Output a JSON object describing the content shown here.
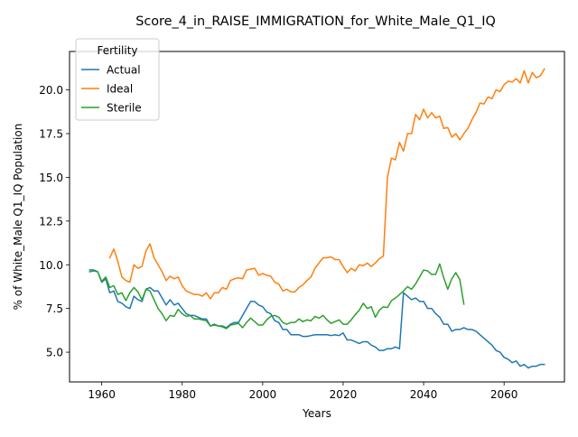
{
  "chart_data": {
    "type": "line",
    "title": "Score_4_in_RAISE_IMMIGRATION_for_White_Male_Q1_IQ",
    "xlabel": "Years",
    "ylabel": "% of White_Male Q1_IQ Population",
    "xlim": [
      1952,
      2075
    ],
    "ylim": [
      3.3,
      22.2
    ],
    "xticks": [
      1960,
      1980,
      2000,
      2020,
      2040,
      2060
    ],
    "yticks": [
      5.0,
      7.5,
      10.0,
      12.5,
      15.0,
      17.5,
      20.0
    ],
    "grid": false,
    "legend": {
      "title": "Fertility",
      "placement": "top-left"
    },
    "series": [
      {
        "name": "Actual",
        "color": "#1f77b4",
        "points": [
          [
            1957,
            9.7
          ],
          [
            1958,
            9.7
          ],
          [
            1959,
            9.6
          ],
          [
            1960,
            9.0
          ],
          [
            1961,
            9.2
          ],
          [
            1962,
            8.4
          ],
          [
            1963,
            8.5
          ],
          [
            1964,
            7.9
          ],
          [
            1965,
            7.8
          ],
          [
            1966,
            7.6
          ],
          [
            1967,
            7.5
          ],
          [
            1968,
            8.2
          ],
          [
            1969,
            8.0
          ],
          [
            1970,
            7.9
          ],
          [
            1971,
            8.6
          ],
          [
            1972,
            8.7
          ],
          [
            1973,
            8.5
          ],
          [
            1974,
            8.5
          ],
          [
            1975,
            8.1
          ],
          [
            1976,
            7.7
          ],
          [
            1977,
            8.0
          ],
          [
            1978,
            7.7
          ],
          [
            1979,
            7.8
          ],
          [
            1980,
            7.5
          ],
          [
            1981,
            7.2
          ],
          [
            1982,
            7.1
          ],
          [
            1983,
            7.1
          ],
          [
            1984,
            7.0
          ],
          [
            1985,
            6.9
          ],
          [
            1986,
            6.9
          ],
          [
            1987,
            6.5
          ],
          [
            1988,
            6.6
          ],
          [
            1989,
            6.5
          ],
          [
            1990,
            6.5
          ],
          [
            1991,
            6.4
          ],
          [
            1992,
            6.6
          ],
          [
            1993,
            6.7
          ],
          [
            1994,
            6.7
          ],
          [
            1995,
            7.1
          ],
          [
            1996,
            7.5
          ],
          [
            1997,
            7.9
          ],
          [
            1998,
            7.9
          ],
          [
            1999,
            7.7
          ],
          [
            2000,
            7.6
          ],
          [
            2001,
            7.3
          ],
          [
            2002,
            7.2
          ],
          [
            2003,
            6.8
          ],
          [
            2004,
            6.7
          ],
          [
            2005,
            6.3
          ],
          [
            2006,
            6.3
          ],
          [
            2007,
            6.0
          ],
          [
            2008,
            6.0
          ],
          [
            2009,
            6.0
          ],
          [
            2010,
            5.9
          ],
          [
            2011,
            5.9
          ],
          [
            2012,
            5.95
          ],
          [
            2013,
            6.0
          ],
          [
            2014,
            6.0
          ],
          [
            2015,
            6.0
          ],
          [
            2016,
            6.0
          ],
          [
            2017,
            5.95
          ],
          [
            2018,
            6.0
          ],
          [
            2019,
            5.95
          ],
          [
            2020,
            6.1
          ],
          [
            2021,
            5.7
          ],
          [
            2022,
            5.7
          ],
          [
            2023,
            5.6
          ],
          [
            2024,
            5.5
          ],
          [
            2025,
            5.6
          ],
          [
            2026,
            5.6
          ],
          [
            2027,
            5.4
          ],
          [
            2028,
            5.3
          ],
          [
            2029,
            5.1
          ],
          [
            2030,
            5.1
          ],
          [
            2031,
            5.2
          ],
          [
            2032,
            5.2
          ],
          [
            2033,
            5.3
          ],
          [
            2034,
            5.2
          ],
          [
            2035,
            8.4
          ],
          [
            2036,
            8.2
          ],
          [
            2037,
            8.0
          ],
          [
            2038,
            8.1
          ],
          [
            2039,
            7.9
          ],
          [
            2040,
            7.9
          ],
          [
            2041,
            7.5
          ],
          [
            2042,
            7.5
          ],
          [
            2043,
            7.2
          ],
          [
            2044,
            7.0
          ],
          [
            2045,
            6.6
          ],
          [
            2046,
            6.6
          ],
          [
            2047,
            6.2
          ],
          [
            2048,
            6.3
          ],
          [
            2049,
            6.3
          ],
          [
            2050,
            6.4
          ],
          [
            2051,
            6.3
          ],
          [
            2052,
            6.3
          ],
          [
            2053,
            6.2
          ],
          [
            2054,
            6.0
          ],
          [
            2055,
            5.8
          ],
          [
            2056,
            5.6
          ],
          [
            2057,
            5.4
          ],
          [
            2058,
            5.1
          ],
          [
            2059,
            5.0
          ],
          [
            2060,
            4.7
          ],
          [
            2061,
            4.6
          ],
          [
            2062,
            4.4
          ],
          [
            2063,
            4.5
          ],
          [
            2064,
            4.2
          ],
          [
            2065,
            4.3
          ],
          [
            2066,
            4.1
          ],
          [
            2067,
            4.2
          ],
          [
            2068,
            4.2
          ],
          [
            2069,
            4.3
          ],
          [
            2070,
            4.3
          ]
        ]
      },
      {
        "name": "Ideal",
        "color": "#ff7f0e",
        "points": [
          [
            1962,
            10.4
          ],
          [
            1963,
            10.9
          ],
          [
            1964,
            10.2
          ],
          [
            1965,
            9.3
          ],
          [
            1966,
            9.1
          ],
          [
            1967,
            9.0
          ],
          [
            1968,
            10.0
          ],
          [
            1969,
            9.8
          ],
          [
            1970,
            9.9
          ],
          [
            1971,
            10.8
          ],
          [
            1972,
            11.2
          ],
          [
            1973,
            10.4
          ],
          [
            1974,
            10.0
          ],
          [
            1975,
            9.6
          ],
          [
            1976,
            9.1
          ],
          [
            1977,
            9.35
          ],
          [
            1978,
            9.2
          ],
          [
            1979,
            9.3
          ],
          [
            1980,
            8.8
          ],
          [
            1981,
            8.5
          ],
          [
            1982,
            8.4
          ],
          [
            1983,
            8.3
          ],
          [
            1984,
            8.3
          ],
          [
            1985,
            8.2
          ],
          [
            1986,
            8.4
          ],
          [
            1987,
            8.05
          ],
          [
            1988,
            8.4
          ],
          [
            1989,
            8.4
          ],
          [
            1990,
            8.7
          ],
          [
            1991,
            8.6
          ],
          [
            1992,
            9.1
          ],
          [
            1993,
            9.2
          ],
          [
            1994,
            9.25
          ],
          [
            1995,
            9.2
          ],
          [
            1996,
            9.7
          ],
          [
            1997,
            9.75
          ],
          [
            1998,
            9.8
          ],
          [
            1999,
            9.4
          ],
          [
            2000,
            9.5
          ],
          [
            2001,
            9.4
          ],
          [
            2002,
            9.35
          ],
          [
            2003,
            9.0
          ],
          [
            2004,
            8.9
          ],
          [
            2005,
            8.5
          ],
          [
            2006,
            8.6
          ],
          [
            2007,
            8.45
          ],
          [
            2008,
            8.45
          ],
          [
            2009,
            8.7
          ],
          [
            2010,
            8.85
          ],
          [
            2011,
            9.1
          ],
          [
            2012,
            9.3
          ],
          [
            2013,
            9.8
          ],
          [
            2014,
            10.1
          ],
          [
            2015,
            10.4
          ],
          [
            2016,
            10.4
          ],
          [
            2017,
            10.45
          ],
          [
            2018,
            10.3
          ],
          [
            2019,
            10.3
          ],
          [
            2020,
            9.9
          ],
          [
            2021,
            9.55
          ],
          [
            2022,
            9.8
          ],
          [
            2023,
            9.65
          ],
          [
            2024,
            10.0
          ],
          [
            2025,
            9.95
          ],
          [
            2026,
            10.1
          ],
          [
            2027,
            9.9
          ],
          [
            2028,
            10.1
          ],
          [
            2029,
            10.35
          ],
          [
            2030,
            10.5
          ],
          [
            2031,
            15.0
          ],
          [
            2032,
            16.1
          ],
          [
            2033,
            16.0
          ],
          [
            2034,
            17.0
          ],
          [
            2035,
            16.5
          ],
          [
            2036,
            17.5
          ],
          [
            2037,
            17.5
          ],
          [
            2038,
            18.6
          ],
          [
            2039,
            18.3
          ],
          [
            2040,
            18.9
          ],
          [
            2041,
            18.4
          ],
          [
            2042,
            18.7
          ],
          [
            2043,
            18.4
          ],
          [
            2044,
            18.5
          ],
          [
            2045,
            17.8
          ],
          [
            2046,
            17.85
          ],
          [
            2047,
            17.3
          ],
          [
            2048,
            17.5
          ],
          [
            2049,
            17.15
          ],
          [
            2050,
            17.5
          ],
          [
            2051,
            17.8
          ],
          [
            2052,
            18.3
          ],
          [
            2053,
            18.7
          ],
          [
            2054,
            19.25
          ],
          [
            2055,
            19.2
          ],
          [
            2056,
            19.6
          ],
          [
            2057,
            19.5
          ],
          [
            2058,
            20.0
          ],
          [
            2059,
            19.9
          ],
          [
            2060,
            20.3
          ],
          [
            2061,
            20.5
          ],
          [
            2062,
            20.45
          ],
          [
            2063,
            20.65
          ],
          [
            2064,
            20.4
          ],
          [
            2065,
            21.1
          ],
          [
            2066,
            20.4
          ],
          [
            2067,
            21.0
          ],
          [
            2068,
            20.7
          ],
          [
            2069,
            20.8
          ],
          [
            2070,
            21.2
          ]
        ]
      },
      {
        "name": "Sterile",
        "color": "#2ca02c",
        "points": [
          [
            1957,
            9.6
          ],
          [
            1958,
            9.65
          ],
          [
            1959,
            9.6
          ],
          [
            1960,
            9.05
          ],
          [
            1961,
            9.3
          ],
          [
            1962,
            8.7
          ],
          [
            1963,
            8.8
          ],
          [
            1964,
            8.3
          ],
          [
            1965,
            8.4
          ],
          [
            1966,
            7.95
          ],
          [
            1967,
            8.4
          ],
          [
            1968,
            8.7
          ],
          [
            1969,
            8.45
          ],
          [
            1970,
            8.0
          ],
          [
            1971,
            8.6
          ],
          [
            1972,
            8.5
          ],
          [
            1973,
            8.0
          ],
          [
            1974,
            7.5
          ],
          [
            1975,
            7.2
          ],
          [
            1976,
            6.8
          ],
          [
            1977,
            7.1
          ],
          [
            1978,
            7.05
          ],
          [
            1979,
            7.45
          ],
          [
            1980,
            7.2
          ],
          [
            1981,
            7.05
          ],
          [
            1982,
            7.1
          ],
          [
            1983,
            6.9
          ],
          [
            1984,
            6.9
          ],
          [
            1985,
            6.85
          ],
          [
            1986,
            6.8
          ],
          [
            1987,
            6.5
          ],
          [
            1988,
            6.55
          ],
          [
            1989,
            6.5
          ],
          [
            1990,
            6.45
          ],
          [
            1991,
            6.35
          ],
          [
            1992,
            6.55
          ],
          [
            1993,
            6.6
          ],
          [
            1994,
            6.65
          ],
          [
            1995,
            6.4
          ],
          [
            1996,
            6.7
          ],
          [
            1997,
            6.95
          ],
          [
            1998,
            6.75
          ],
          [
            1999,
            6.55
          ],
          [
            2000,
            6.55
          ],
          [
            2001,
            6.85
          ],
          [
            2002,
            7.05
          ],
          [
            2003,
            7.1
          ],
          [
            2004,
            7.0
          ],
          [
            2005,
            6.7
          ],
          [
            2006,
            6.6
          ],
          [
            2007,
            6.7
          ],
          [
            2008,
            6.7
          ],
          [
            2009,
            6.9
          ],
          [
            2010,
            6.75
          ],
          [
            2011,
            6.85
          ],
          [
            2012,
            6.8
          ],
          [
            2013,
            7.05
          ],
          [
            2014,
            6.95
          ],
          [
            2015,
            7.1
          ],
          [
            2016,
            6.85
          ],
          [
            2017,
            6.65
          ],
          [
            2018,
            6.75
          ],
          [
            2019,
            6.85
          ],
          [
            2020,
            6.6
          ],
          [
            2021,
            6.6
          ],
          [
            2022,
            6.85
          ],
          [
            2023,
            7.15
          ],
          [
            2024,
            7.4
          ],
          [
            2025,
            7.8
          ],
          [
            2026,
            7.5
          ],
          [
            2027,
            7.6
          ],
          [
            2028,
            7.0
          ],
          [
            2029,
            7.4
          ],
          [
            2030,
            7.6
          ],
          [
            2031,
            7.55
          ],
          [
            2032,
            7.95
          ],
          [
            2033,
            8.1
          ],
          [
            2034,
            8.3
          ],
          [
            2035,
            8.5
          ],
          [
            2036,
            8.75
          ],
          [
            2037,
            8.6
          ],
          [
            2038,
            8.9
          ],
          [
            2039,
            9.3
          ],
          [
            2040,
            9.7
          ],
          [
            2041,
            9.65
          ],
          [
            2042,
            9.45
          ],
          [
            2043,
            9.45
          ],
          [
            2044,
            10.05
          ],
          [
            2045,
            9.25
          ],
          [
            2046,
            8.6
          ],
          [
            2047,
            9.2
          ],
          [
            2048,
            9.55
          ],
          [
            2049,
            9.15
          ],
          [
            2050,
            7.75
          ]
        ]
      }
    ]
  }
}
